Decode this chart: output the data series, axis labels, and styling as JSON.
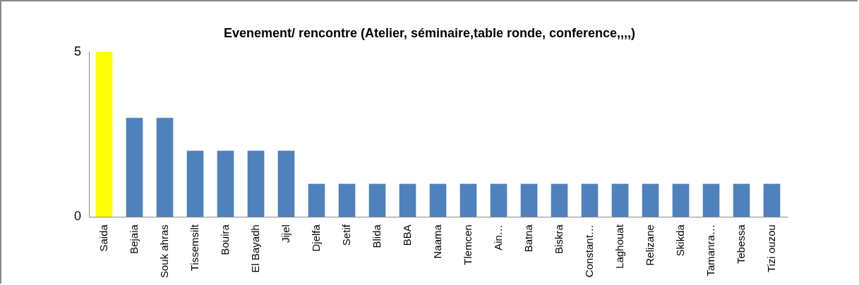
{
  "chart_data": {
    "type": "bar",
    "title": "Evenement/ rencontre (Atelier, séminaire,table ronde, conference,,,,)",
    "categories": [
      "Saida",
      "Bejaia",
      "Souk ahras",
      "Tissemsilt",
      "Bouira",
      "El Bayadh",
      "Jijel",
      "Djelfa",
      "Setif",
      "Blida",
      "BBA",
      "Naama",
      "Tlemcen",
      "Ain…",
      "Batna",
      "Biskra",
      "Constant…",
      "Laghouat",
      "Relizane",
      "Skikda",
      "Tamanra…",
      "Tebessa",
      "Tizi ouzou"
    ],
    "values": [
      5,
      3,
      3,
      2,
      2,
      2,
      2,
      1,
      1,
      1,
      1,
      1,
      1,
      1,
      1,
      1,
      1,
      1,
      1,
      1,
      1,
      1,
      1
    ],
    "colors": [
      "#ffff00",
      "#4f81bd",
      "#4f81bd",
      "#4f81bd",
      "#4f81bd",
      "#4f81bd",
      "#4f81bd",
      "#4f81bd",
      "#4f81bd",
      "#4f81bd",
      "#4f81bd",
      "#4f81bd",
      "#4f81bd",
      "#4f81bd",
      "#4f81bd",
      "#4f81bd",
      "#4f81bd",
      "#4f81bd",
      "#4f81bd",
      "#4f81bd",
      "#4f81bd",
      "#4f81bd",
      "#4f81bd"
    ],
    "ylim": [
      0,
      5
    ],
    "yticks": [
      0,
      5
    ],
    "grid": false,
    "legend": false
  }
}
